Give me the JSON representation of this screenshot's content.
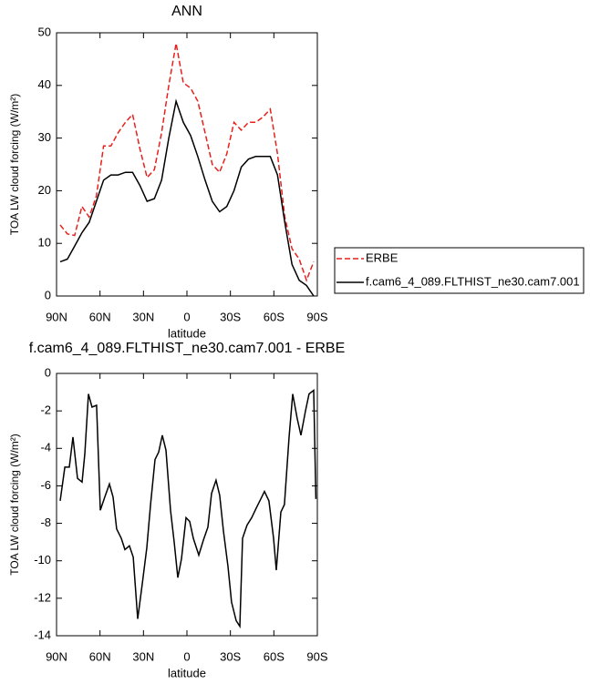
{
  "chart_data": [
    {
      "type": "line",
      "title": "ANN",
      "x_label": "latitude",
      "y_label": "TOA LW cloud forcing (W/m²)",
      "x": [
        87.5,
        82.5,
        77.5,
        72.5,
        67.5,
        62.5,
        57.5,
        52.5,
        47.5,
        42.5,
        37.5,
        32.5,
        27.5,
        22.5,
        17.5,
        12.5,
        7.5,
        2.5,
        -2.5,
        -7.5,
        -12.5,
        -17.5,
        -22.5,
        -27.5,
        -32.5,
        -37.5,
        -42.5,
        -47.5,
        -52.5,
        -57.5,
        -62.5,
        -67.5,
        -72.5,
        -77.5,
        -82.5,
        -87.5
      ],
      "series": [
        {
          "name": "ERBE",
          "color": "#e8201c",
          "style": "dashed",
          "values": [
            13.5,
            11.8,
            11.5,
            17,
            15,
            19,
            28.5,
            28.5,
            31,
            33,
            34.5,
            28,
            22.5,
            24,
            31,
            40,
            48,
            40.5,
            39.5,
            37,
            31,
            25,
            23.5,
            27,
            33,
            31.5,
            33,
            33,
            34,
            35.5,
            27,
            15,
            9,
            7,
            3,
            6.5
          ]
        },
        {
          "name": "f.cam6_4_089.FLTHIST_ne30.cam7.001",
          "color": "#000000",
          "style": "solid",
          "values": [
            6.5,
            7,
            9.5,
            12,
            14,
            18,
            22,
            23,
            23,
            23.5,
            23.5,
            21,
            18,
            18.5,
            22,
            30,
            37,
            33,
            30.5,
            26.5,
            22,
            18,
            16,
            17,
            20,
            24.5,
            26,
            26.5,
            26.5,
            26.5,
            23,
            14,
            6,
            3,
            2,
            0
          ]
        }
      ],
      "xlim": [
        90,
        -90
      ],
      "xticks": [
        {
          "value": 90,
          "label": "90N"
        },
        {
          "value": 60,
          "label": "60N"
        },
        {
          "value": 30,
          "label": "30N"
        },
        0,
        {
          "value": -30,
          "label": "30S"
        },
        {
          "value": -60,
          "label": "60S"
        },
        {
          "value": -90,
          "label": "90S"
        }
      ],
      "ylim": [
        0,
        50
      ],
      "yticks": [
        0,
        10,
        20,
        30,
        40,
        50
      ],
      "legend": "right"
    },
    {
      "type": "line",
      "title": "f.cam6_4_089.FLTHIST_ne30.cam7.001 - ERBE",
      "x_label": "latitude",
      "y_label": "TOA LW cloud forcing (W/m²)",
      "x": [
        87.5,
        84.3,
        81.2,
        78.7,
        75.5,
        72.4,
        70.5,
        68,
        65.5,
        62.4,
        59.8,
        56.7,
        53.5,
        51,
        48.5,
        45.3,
        42.8,
        39.7,
        37.1,
        34,
        30.8,
        27.7,
        25.1,
        22,
        19.5,
        17,
        14.5,
        11.3,
        8.8,
        6.3,
        3.8,
        0.6,
        -1.9,
        -4.4,
        -8.2,
        -11.3,
        -14.5,
        -17,
        -20.1,
        -22.6,
        -25.2,
        -28.3,
        -30.8,
        -34,
        -36.5,
        -38.4,
        -41.5,
        -44.7,
        -47.8,
        -51,
        -53.5,
        -56.6,
        -59.8,
        -61.7,
        -64.8,
        -67.3,
        -70.5,
        -73,
        -76.1,
        -78.7,
        -81.8,
        -84.3,
        -87.5,
        -89
      ],
      "values": [
        -6.8,
        -5,
        -5,
        -3.4,
        -5.6,
        -5.8,
        -4.3,
        -1.1,
        -1.8,
        -1.7,
        -7.3,
        -6.6,
        -5.9,
        -6.6,
        -8.3,
        -8.8,
        -9.4,
        -9.2,
        -9.8,
        -13.1,
        -11.2,
        -9.3,
        -7,
        -4.6,
        -4.2,
        -3.3,
        -4.1,
        -7.3,
        -9,
        -10.9,
        -9.9,
        -7.7,
        -7.9,
        -8.8,
        -9.7,
        -8.9,
        -8.2,
        -6.4,
        -5.7,
        -6.5,
        -8.4,
        -10.3,
        -12.2,
        -13.2,
        -13.5,
        -8.8,
        -8.1,
        -7.7,
        -7.2,
        -6.7,
        -6.3,
        -6.8,
        -8.8,
        -10.5,
        -7.4,
        -7,
        -3.4,
        -1.1,
        -2.4,
        -3.3,
        -2,
        -1.1,
        -0.9,
        -6.7
      ],
      "color": "#000000",
      "xlim": [
        90,
        -90
      ],
      "xticks": [
        {
          "value": 90,
          "label": "90N"
        },
        {
          "value": 60,
          "label": "60N"
        },
        {
          "value": 30,
          "label": "30N"
        },
        0,
        {
          "value": -30,
          "label": "30S"
        },
        {
          "value": -60,
          "label": "60S"
        },
        {
          "value": -90,
          "label": "90S"
        }
      ],
      "ylim": [
        -14,
        0
      ],
      "yticks": [
        0,
        -2,
        -4,
        -6,
        -8,
        -10,
        -12,
        -14
      ]
    }
  ]
}
